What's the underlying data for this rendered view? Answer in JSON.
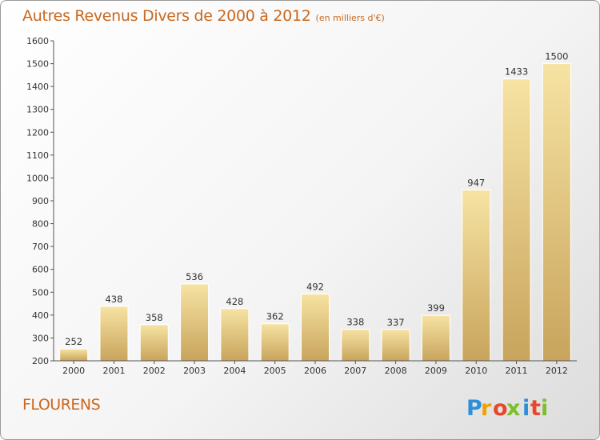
{
  "title": "Autres Revenus Divers de 2000 à 2012",
  "title_unit": "(en milliers d'€)",
  "commune": "FLOURENS",
  "brand": {
    "letters": [
      "P",
      "r",
      "o",
      "x",
      "i",
      "t",
      "i"
    ],
    "colors": [
      "#2f8fd6",
      "#f4a000",
      "#e8472b",
      "#7bbf2a",
      "#2f8fd6",
      "#e8472b",
      "#7bbf2a"
    ]
  },
  "colors": {
    "bar_light": "#f7e3a3",
    "bar_dark": "#c8a45c",
    "title": "#c8681f"
  },
  "chart_data": {
    "type": "bar",
    "categories": [
      "2000",
      "2001",
      "2002",
      "2003",
      "2004",
      "2005",
      "2006",
      "2007",
      "2008",
      "2009",
      "2010",
      "2011",
      "2012"
    ],
    "values": [
      252,
      438,
      358,
      536,
      428,
      362,
      492,
      338,
      337,
      399,
      947,
      1433,
      1500
    ],
    "ylim": [
      200,
      1600
    ],
    "yticks": [
      200,
      300,
      400,
      500,
      600,
      700,
      800,
      900,
      1000,
      1100,
      1200,
      1300,
      1400,
      1500,
      1600
    ],
    "grid": false,
    "legend": "none"
  }
}
